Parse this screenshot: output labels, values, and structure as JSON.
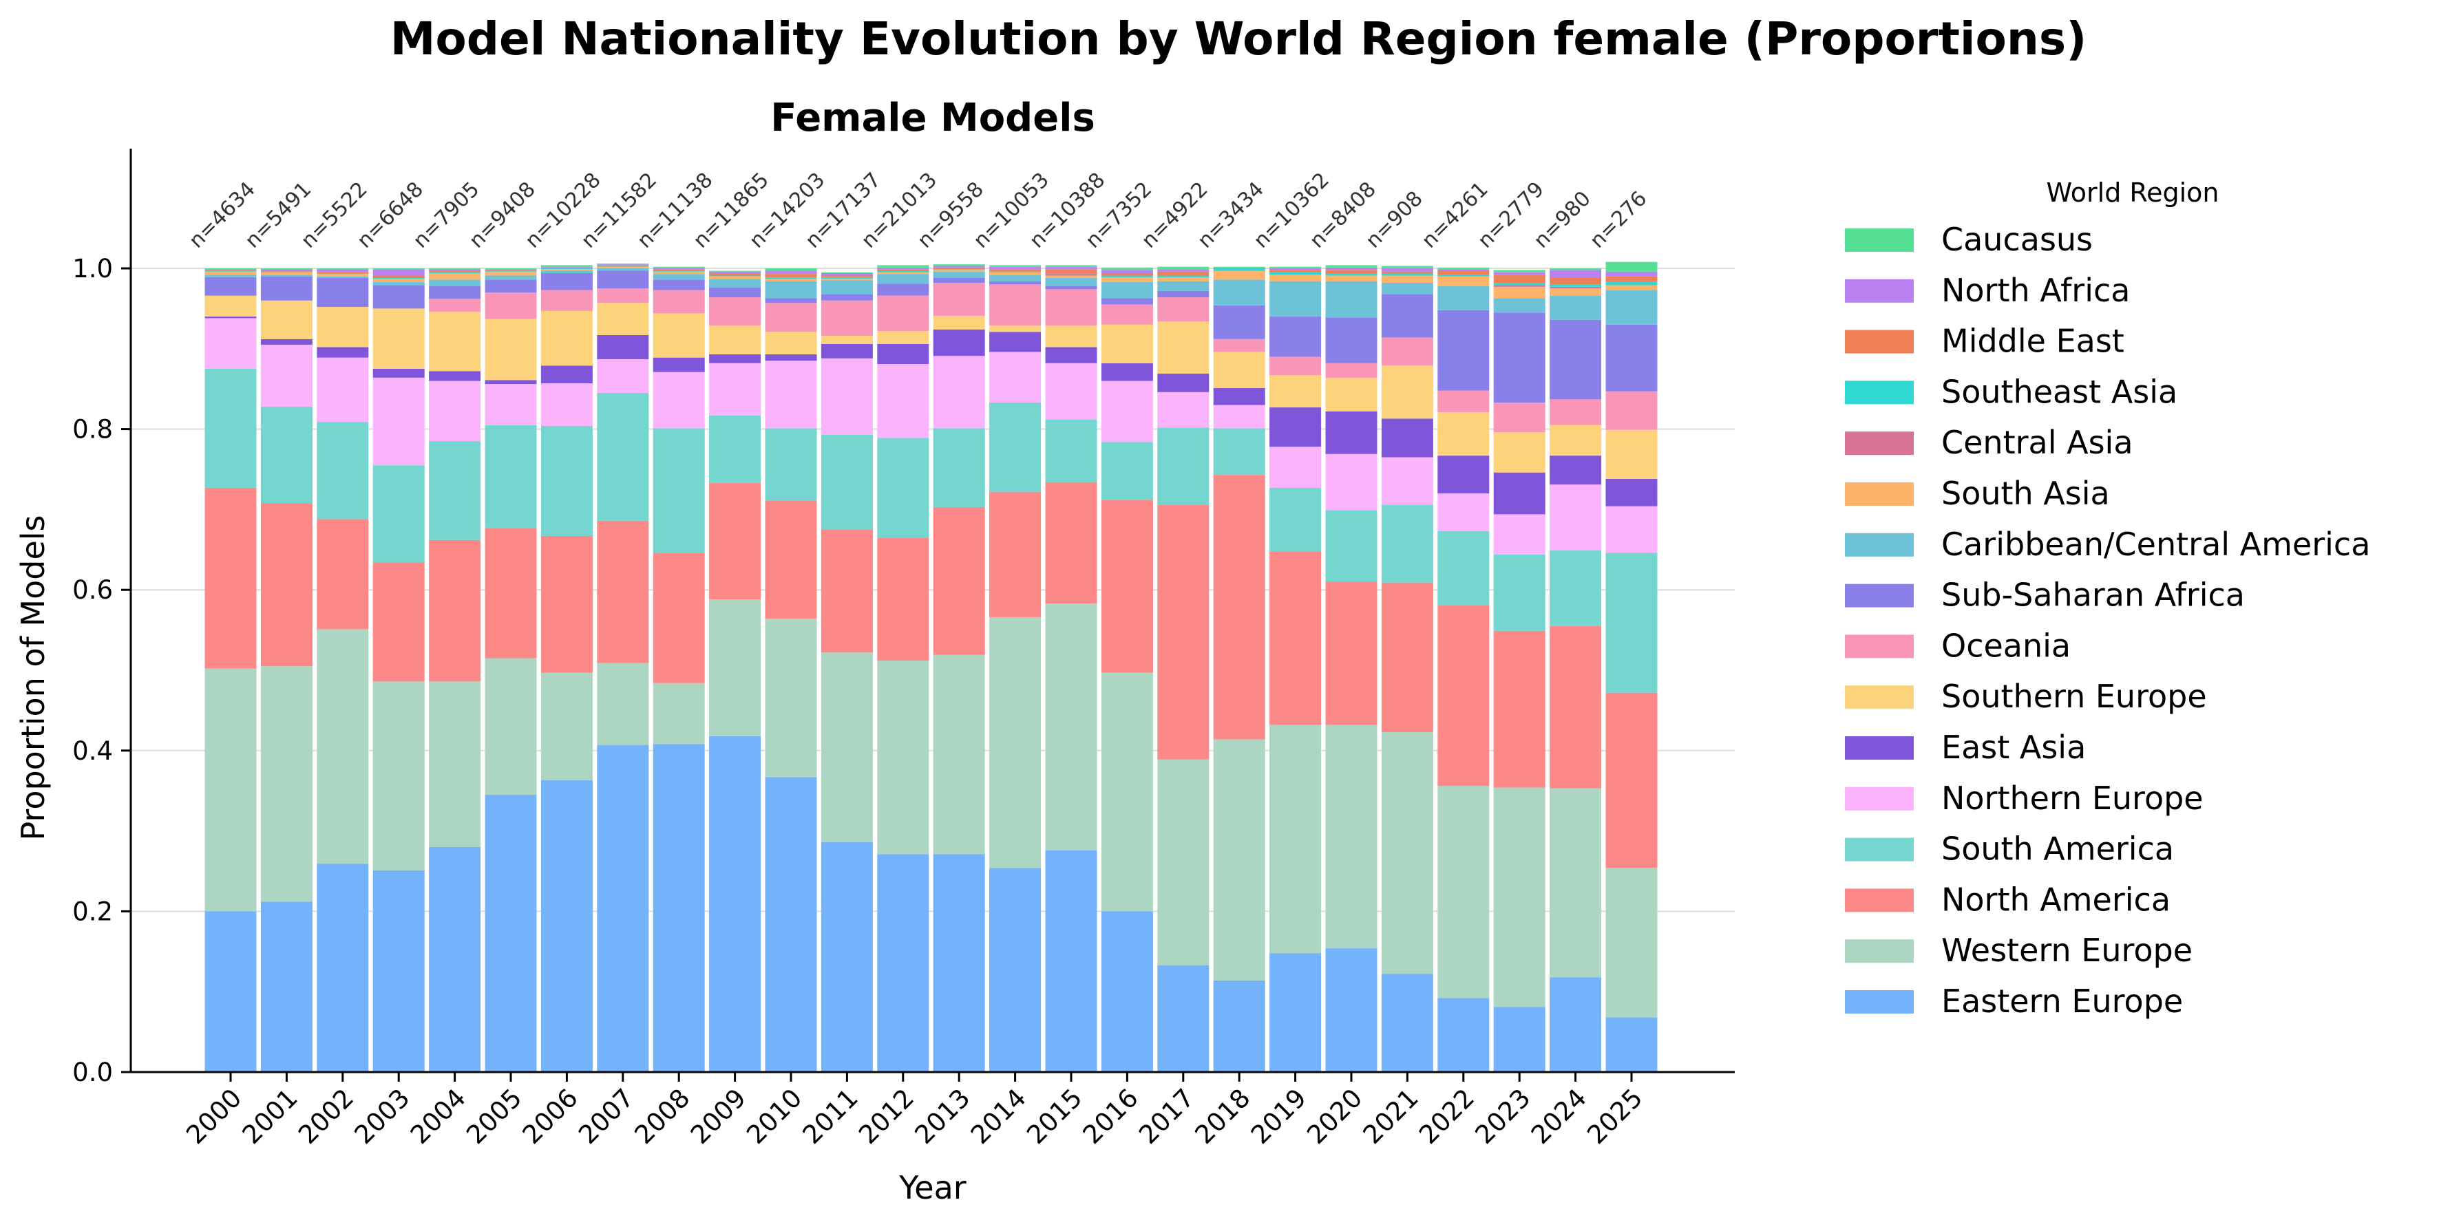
{
  "title": "Model Nationality Evolution by World Region female (Proportions)",
  "chart_data": {
    "type": "bar",
    "stacked": true,
    "title": "Female Models",
    "xlabel": "Year",
    "ylabel": "Proportion of Models",
    "ylim": [
      0,
      1.15
    ],
    "yticks": [
      "0.0",
      "0.2",
      "0.4",
      "0.6",
      "0.8",
      "1.0"
    ],
    "grid": "horizontal",
    "legend_title": "World Region",
    "legend_position": "outside-right",
    "categories": [
      "2000",
      "2001",
      "2002",
      "2003",
      "2004",
      "2005",
      "2006",
      "2007",
      "2008",
      "2009",
      "2010",
      "2011",
      "2012",
      "2013",
      "2014",
      "2015",
      "2016",
      "2017",
      "2018",
      "2019",
      "2020",
      "2021",
      "2022",
      "2023",
      "2024",
      "2025"
    ],
    "n_labels": [
      "n=4634",
      "n=5491",
      "n=5522",
      "n=6648",
      "n=7905",
      "n=9408",
      "n=10228",
      "n=11582",
      "n=11138",
      "n=11865",
      "n=14203",
      "n=17137",
      "n=21013",
      "n=9558",
      "n=10053",
      "n=10388",
      "n=7352",
      "n=4922",
      "n=3434",
      "n=10362",
      "n=8408",
      "n=908",
      "n=4261",
      "n=2779",
      "n=980",
      "n=276"
    ],
    "series": [
      {
        "name": "Eastern Europe",
        "color": "#74b3fb",
        "values": [
          0.2,
          0.212,
          0.259,
          0.251,
          0.28,
          0.345,
          0.363,
          0.407,
          0.408,
          0.418,
          0.367,
          0.286,
          0.271,
          0.271,
          0.254,
          0.276,
          0.2,
          0.133,
          0.114,
          0.148,
          0.154,
          0.122,
          0.092,
          0.081,
          0.118,
          0.068
        ]
      },
      {
        "name": "Western Europe",
        "color": "#acd6c1",
        "values": [
          0.302,
          0.293,
          0.292,
          0.235,
          0.206,
          0.17,
          0.134,
          0.102,
          0.076,
          0.17,
          0.197,
          0.236,
          0.241,
          0.248,
          0.312,
          0.307,
          0.297,
          0.256,
          0.3,
          0.284,
          0.278,
          0.301,
          0.264,
          0.273,
          0.235,
          0.186
        ]
      },
      {
        "name": "North America",
        "color": "#fd8888",
        "values": [
          0.225,
          0.203,
          0.137,
          0.148,
          0.176,
          0.162,
          0.17,
          0.177,
          0.162,
          0.145,
          0.147,
          0.153,
          0.153,
          0.184,
          0.156,
          0.151,
          0.215,
          0.317,
          0.329,
          0.216,
          0.178,
          0.186,
          0.225,
          0.195,
          0.202,
          0.218
        ]
      },
      {
        "name": "South America",
        "color": "#74d6cf",
        "values": [
          0.148,
          0.12,
          0.121,
          0.121,
          0.123,
          0.128,
          0.137,
          0.159,
          0.155,
          0.084,
          0.09,
          0.118,
          0.124,
          0.098,
          0.111,
          0.078,
          0.072,
          0.096,
          0.058,
          0.079,
          0.089,
          0.097,
          0.092,
          0.095,
          0.094,
          0.174
        ]
      },
      {
        "name": "Northern Europe",
        "color": "#fbb3fb",
        "values": [
          0.063,
          0.077,
          0.08,
          0.109,
          0.075,
          0.051,
          0.053,
          0.042,
          0.07,
          0.065,
          0.084,
          0.095,
          0.092,
          0.09,
          0.063,
          0.07,
          0.076,
          0.044,
          0.029,
          0.051,
          0.07,
          0.059,
          0.047,
          0.05,
          0.082,
          0.058
        ]
      },
      {
        "name": "East Asia",
        "color": "#7f56d9",
        "values": [
          0.002,
          0.007,
          0.013,
          0.011,
          0.012,
          0.005,
          0.022,
          0.03,
          0.018,
          0.011,
          0.008,
          0.018,
          0.025,
          0.033,
          0.025,
          0.02,
          0.022,
          0.023,
          0.021,
          0.049,
          0.053,
          0.048,
          0.047,
          0.052,
          0.036,
          0.034
        ]
      },
      {
        "name": "Southern Europe",
        "color": "#fcd37a",
        "values": [
          0.026,
          0.048,
          0.05,
          0.075,
          0.074,
          0.076,
          0.068,
          0.04,
          0.055,
          0.036,
          0.028,
          0.01,
          0.016,
          0.017,
          0.008,
          0.027,
          0.048,
          0.065,
          0.045,
          0.04,
          0.042,
          0.066,
          0.054,
          0.05,
          0.038,
          0.061
        ]
      },
      {
        "name": "Oceania",
        "color": "#f996b8",
        "values": [
          0.0,
          0.0,
          0.0,
          0.0,
          0.016,
          0.033,
          0.026,
          0.018,
          0.029,
          0.035,
          0.036,
          0.044,
          0.044,
          0.041,
          0.051,
          0.045,
          0.025,
          0.03,
          0.016,
          0.023,
          0.018,
          0.035,
          0.027,
          0.037,
          0.032,
          0.048
        ]
      },
      {
        "name": "Sub-Saharan Africa",
        "color": "#8980ea",
        "values": [
          0.023,
          0.03,
          0.036,
          0.029,
          0.016,
          0.016,
          0.021,
          0.022,
          0.013,
          0.012,
          0.006,
          0.008,
          0.015,
          0.006,
          0.004,
          0.004,
          0.008,
          0.008,
          0.042,
          0.05,
          0.057,
          0.054,
          0.1,
          0.112,
          0.099,
          0.083
        ]
      },
      {
        "name": "Caribbean/Central America",
        "color": "#6ec2d8",
        "values": [
          0.003,
          0.002,
          0.002,
          0.004,
          0.008,
          0.005,
          0.003,
          0.003,
          0.007,
          0.011,
          0.021,
          0.017,
          0.012,
          0.008,
          0.008,
          0.01,
          0.02,
          0.012,
          0.032,
          0.044,
          0.045,
          0.014,
          0.03,
          0.018,
          0.03,
          0.043
        ]
      },
      {
        "name": "South Asia",
        "color": "#fdb369",
        "values": [
          0.004,
          0.003,
          0.003,
          0.004,
          0.008,
          0.005,
          0.002,
          0.002,
          0.003,
          0.003,
          0.003,
          0.002,
          0.002,
          0.002,
          0.003,
          0.003,
          0.006,
          0.005,
          0.011,
          0.008,
          0.007,
          0.009,
          0.012,
          0.014,
          0.009,
          0.006
        ]
      },
      {
        "name": "Central Asia",
        "color": "#d87393",
        "values": [
          0.0,
          0.0,
          0.0,
          0.0,
          0.0,
          0.0,
          0.0,
          0.0,
          0.0,
          0.0,
          0.0,
          0.0,
          0.0,
          0.0,
          0.0,
          0.002,
          0.0,
          0.0,
          0.0,
          0.0,
          0.0,
          0.0,
          0.0,
          0.002,
          0.002,
          0.0
        ]
      },
      {
        "name": "Southeast Asia",
        "color": "#2fd8d3",
        "values": [
          0.001,
          0.001,
          0.001,
          0.001,
          0.001,
          0.001,
          0.001,
          0.001,
          0.001,
          0.001,
          0.002,
          0.002,
          0.002,
          0.001,
          0.001,
          0.001,
          0.002,
          0.002,
          0.003,
          0.003,
          0.003,
          0.003,
          0.002,
          0.003,
          0.003,
          0.004
        ]
      },
      {
        "name": "Middle East",
        "color": "#ee7f56",
        "values": [
          0.001,
          0.001,
          0.001,
          0.003,
          0.002,
          0.001,
          0.001,
          0.001,
          0.002,
          0.003,
          0.004,
          0.002,
          0.002,
          0.002,
          0.003,
          0.005,
          0.003,
          0.005,
          0.001,
          0.003,
          0.004,
          0.002,
          0.005,
          0.01,
          0.008,
          0.007
        ]
      },
      {
        "name": "North Africa",
        "color": "#b982f0",
        "values": [
          0.001,
          0.002,
          0.004,
          0.008,
          0.002,
          0.001,
          0.001,
          0.001,
          0.002,
          0.002,
          0.004,
          0.003,
          0.002,
          0.002,
          0.003,
          0.003,
          0.004,
          0.003,
          0.0,
          0.002,
          0.003,
          0.004,
          0.002,
          0.003,
          0.01,
          0.006
        ]
      },
      {
        "name": "Caucasus",
        "color": "#56e096",
        "values": [
          0.001,
          0.001,
          0.001,
          0.001,
          0.001,
          0.001,
          0.002,
          0.001,
          0.001,
          0.001,
          0.003,
          0.001,
          0.003,
          0.002,
          0.002,
          0.002,
          0.003,
          0.003,
          0.001,
          0.002,
          0.003,
          0.003,
          0.002,
          0.003,
          0.002,
          0.012
        ]
      }
    ]
  }
}
